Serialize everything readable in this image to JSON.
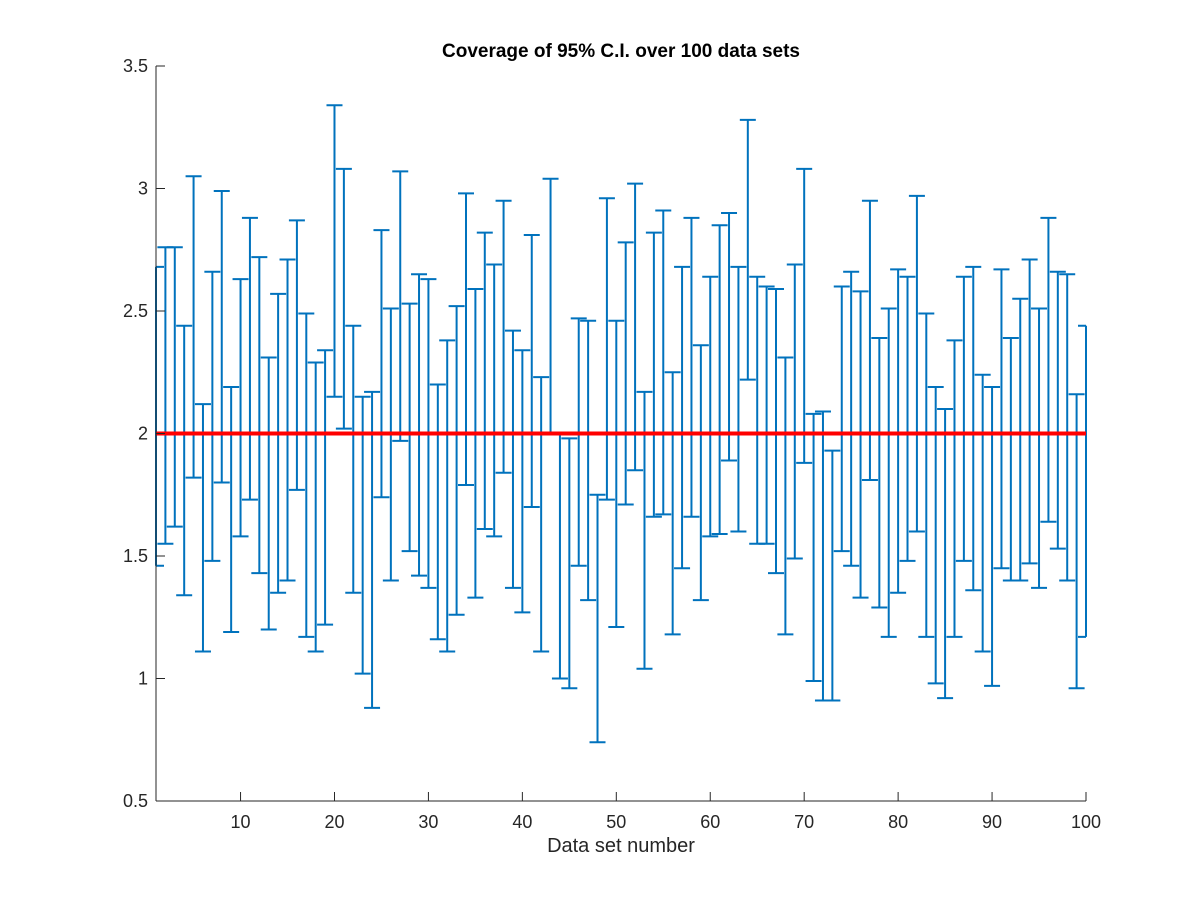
{
  "chart_data": {
    "type": "errorbar",
    "title": "Coverage of 95% C.I. over 100 data sets",
    "xlabel": "Data set number",
    "ylabel": "",
    "xlim": [
      1,
      100
    ],
    "ylim": [
      0.5,
      3.5
    ],
    "xticks": [
      10,
      20,
      30,
      40,
      50,
      60,
      70,
      80,
      90,
      100
    ],
    "xtick_labels": [
      "10",
      "20",
      "30",
      "40",
      "50",
      "60",
      "70",
      "80",
      "90",
      "100"
    ],
    "yticks": [
      0.5,
      1,
      1.5,
      2,
      2.5,
      3,
      3.5
    ],
    "ytick_labels": [
      "0.5",
      "1",
      "1.5",
      "2",
      "2.5",
      "3",
      "3.5"
    ],
    "grid": false,
    "reference_line": {
      "y": 2,
      "color": "#ff0000"
    },
    "interval_color": "#0072bd",
    "intervals": [
      [
        1.46,
        2.68
      ],
      [
        1.55,
        2.76
      ],
      [
        1.62,
        2.76
      ],
      [
        1.34,
        2.44
      ],
      [
        1.82,
        3.05
      ],
      [
        1.11,
        2.12
      ],
      [
        1.48,
        2.66
      ],
      [
        1.8,
        2.99
      ],
      [
        1.19,
        2.19
      ],
      [
        1.58,
        2.63
      ],
      [
        1.73,
        2.88
      ],
      [
        1.43,
        2.72
      ],
      [
        1.2,
        2.31
      ],
      [
        1.35,
        2.57
      ],
      [
        1.4,
        2.71
      ],
      [
        1.77,
        2.87
      ],
      [
        1.17,
        2.49
      ],
      [
        1.11,
        2.29
      ],
      [
        1.22,
        2.34
      ],
      [
        2.15,
        3.34
      ],
      [
        2.02,
        3.08
      ],
      [
        1.35,
        2.44
      ],
      [
        1.02,
        2.15
      ],
      [
        0.88,
        2.17
      ],
      [
        1.74,
        2.83
      ],
      [
        1.4,
        2.51
      ],
      [
        1.97,
        3.07
      ],
      [
        1.52,
        2.53
      ],
      [
        1.42,
        2.65
      ],
      [
        1.37,
        2.63
      ],
      [
        1.16,
        2.2
      ],
      [
        1.11,
        2.38
      ],
      [
        1.26,
        2.52
      ],
      [
        1.79,
        2.98
      ],
      [
        1.33,
        2.59
      ],
      [
        1.61,
        2.82
      ],
      [
        1.58,
        2.69
      ],
      [
        1.84,
        2.95
      ],
      [
        1.37,
        2.42
      ],
      [
        1.27,
        2.34
      ],
      [
        1.7,
        2.81
      ],
      [
        1.11,
        2.23
      ],
      [
        2.0,
        3.04
      ],
      [
        1.0,
        2.0
      ],
      [
        0.96,
        1.98
      ],
      [
        1.46,
        2.47
      ],
      [
        1.32,
        2.46
      ],
      [
        0.74,
        1.75
      ],
      [
        1.73,
        2.96
      ],
      [
        1.21,
        2.46
      ],
      [
        1.71,
        2.78
      ],
      [
        1.85,
        3.02
      ],
      [
        1.04,
        2.17
      ],
      [
        1.66,
        2.82
      ],
      [
        1.67,
        2.91
      ],
      [
        1.18,
        2.25
      ],
      [
        1.45,
        2.68
      ],
      [
        1.66,
        2.88
      ],
      [
        1.32,
        2.36
      ],
      [
        1.58,
        2.64
      ],
      [
        1.59,
        2.85
      ],
      [
        1.89,
        2.9
      ],
      [
        1.6,
        2.68
      ],
      [
        2.22,
        3.28
      ],
      [
        1.55,
        2.64
      ],
      [
        1.55,
        2.6
      ],
      [
        1.43,
        2.59
      ],
      [
        1.18,
        2.31
      ],
      [
        1.49,
        2.69
      ],
      [
        1.88,
        3.08
      ],
      [
        0.99,
        2.08
      ],
      [
        0.91,
        2.09
      ],
      [
        0.91,
        1.93
      ],
      [
        1.52,
        2.6
      ],
      [
        1.46,
        2.66
      ],
      [
        1.33,
        2.58
      ],
      [
        1.81,
        2.95
      ],
      [
        1.29,
        2.39
      ],
      [
        1.17,
        2.51
      ],
      [
        1.35,
        2.67
      ],
      [
        1.48,
        2.64
      ],
      [
        1.6,
        2.97
      ],
      [
        1.17,
        2.49
      ],
      [
        0.98,
        2.19
      ],
      [
        0.92,
        2.1
      ],
      [
        1.17,
        2.38
      ],
      [
        1.48,
        2.64
      ],
      [
        1.36,
        2.68
      ],
      [
        1.11,
        2.24
      ],
      [
        0.97,
        2.19
      ],
      [
        1.45,
        2.67
      ],
      [
        1.4,
        2.39
      ],
      [
        1.4,
        2.55
      ],
      [
        1.47,
        2.71
      ],
      [
        1.37,
        2.51
      ],
      [
        1.64,
        2.88
      ],
      [
        1.53,
        2.66
      ],
      [
        1.4,
        2.65
      ],
      [
        0.96,
        2.16
      ],
      [
        1.17,
        2.44
      ]
    ]
  }
}
